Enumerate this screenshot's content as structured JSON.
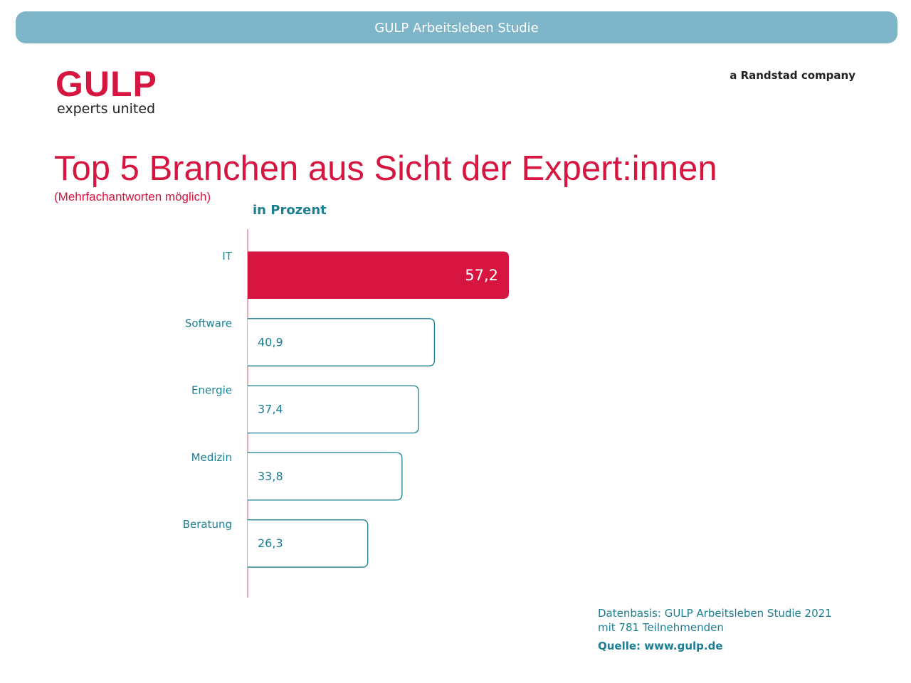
{
  "banner": "GULP Arbeitsleben Studie",
  "logo": {
    "name": "GULP",
    "tagline": "experts united"
  },
  "company": "a Randstad company",
  "colors": {
    "accent": "#d61640",
    "teal": "#1b7f92",
    "banner": "#7fb5c8"
  },
  "chart_data": {
    "type": "bar",
    "orientation": "horizontal",
    "title": "Top 5 Branchen aus Sicht der Expert:innen",
    "subtitle": "(Mehrfachantworten möglich)",
    "xlabel": "in Prozent",
    "categories": [
      "IT",
      "Software",
      "Energie",
      "Medizin",
      "Beratung"
    ],
    "values": [
      57.2,
      40.9,
      37.4,
      33.8,
      26.3
    ],
    "value_labels": [
      "57,2",
      "40,9",
      "37,4",
      "33,8",
      "26,3"
    ],
    "highlight_index": 0,
    "xlim": [
      0,
      100
    ]
  },
  "footer": {
    "line1": "Datenbasis: GULP Arbeitsleben Studie 2021",
    "line2": "mit 781 Teilnehmenden",
    "source": "Quelle: www.gulp.de"
  }
}
